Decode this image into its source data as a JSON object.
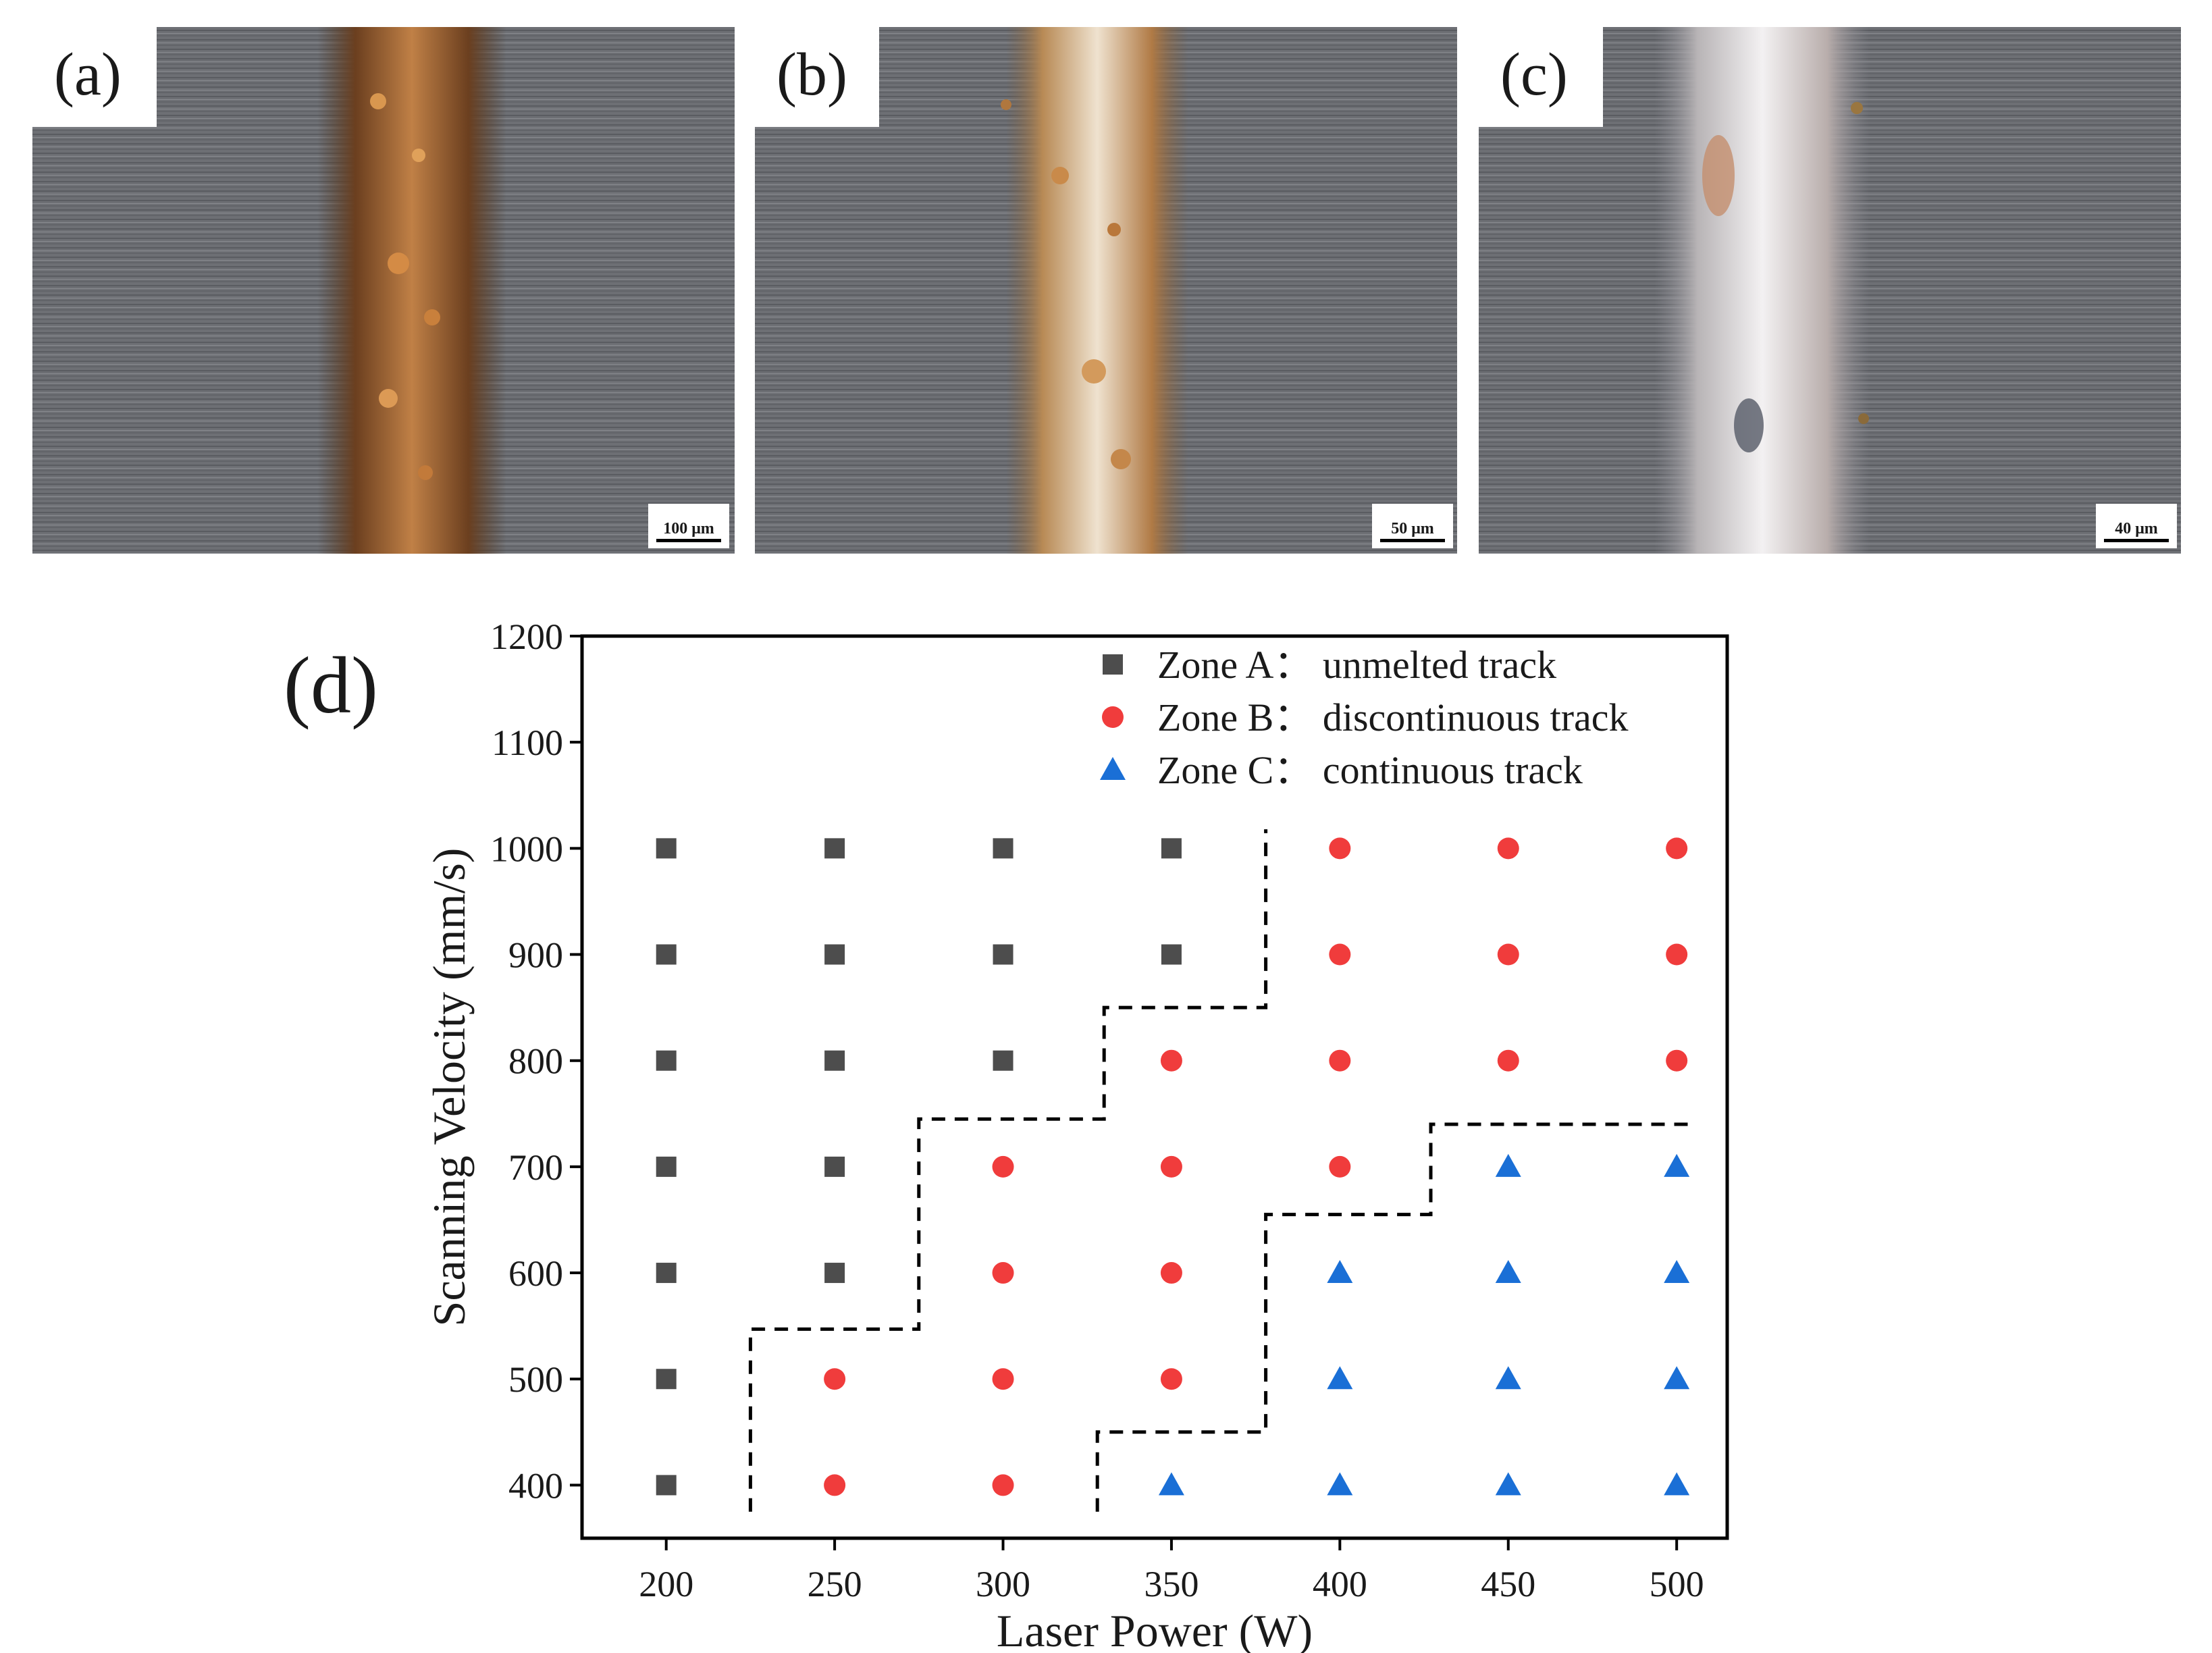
{
  "panels": [
    {
      "label": "(a)",
      "scale_bar": "100 μm"
    },
    {
      "label": "(b)",
      "scale_bar": "50 μm"
    },
    {
      "label": "(c)",
      "scale_bar": "40 μm"
    }
  ],
  "chart_panel_label": "(d)",
  "colors": {
    "zone_a": "#4d4d4d",
    "zone_b": "#f03c3c",
    "zone_c": "#1a6fd6",
    "boundary": "#000000",
    "substrate": "#6f7176",
    "track_copper": "#b06a2e"
  },
  "chart_data": {
    "type": "scatter",
    "xlabel": "Laser Power (W)",
    "ylabel": "Scanning Velocity (mm/s)",
    "xlim": [
      175,
      515
    ],
    "ylim": [
      350,
      1200
    ],
    "xticks": [
      200,
      250,
      300,
      350,
      400,
      450,
      500
    ],
    "yticks": [
      400,
      500,
      600,
      700,
      800,
      900,
      1000,
      1100,
      1200
    ],
    "grid": false,
    "legend_position": "top-right",
    "series": [
      {
        "name": "Zone A： unmelted track",
        "marker": "square",
        "points": [
          [
            200,
            1000
          ],
          [
            250,
            1000
          ],
          [
            300,
            1000
          ],
          [
            350,
            1000
          ],
          [
            200,
            900
          ],
          [
            250,
            900
          ],
          [
            300,
            900
          ],
          [
            350,
            900
          ],
          [
            200,
            800
          ],
          [
            250,
            800
          ],
          [
            300,
            800
          ],
          [
            200,
            700
          ],
          [
            250,
            700
          ],
          [
            200,
            600
          ],
          [
            250,
            600
          ],
          [
            200,
            500
          ],
          [
            200,
            400
          ]
        ]
      },
      {
        "name": "Zone B： discontinuous track",
        "marker": "circle",
        "points": [
          [
            400,
            1000
          ],
          [
            450,
            1000
          ],
          [
            500,
            1000
          ],
          [
            400,
            900
          ],
          [
            450,
            900
          ],
          [
            500,
            900
          ],
          [
            350,
            800
          ],
          [
            400,
            800
          ],
          [
            450,
            800
          ],
          [
            500,
            800
          ],
          [
            300,
            700
          ],
          [
            350,
            700
          ],
          [
            400,
            700
          ],
          [
            300,
            600
          ],
          [
            350,
            600
          ],
          [
            250,
            500
          ],
          [
            300,
            500
          ],
          [
            350,
            500
          ],
          [
            250,
            400
          ],
          [
            300,
            400
          ]
        ]
      },
      {
        "name": "Zone C： continuous track",
        "marker": "triangle",
        "points": [
          [
            450,
            700
          ],
          [
            500,
            700
          ],
          [
            400,
            600
          ],
          [
            450,
            600
          ],
          [
            500,
            600
          ],
          [
            400,
            500
          ],
          [
            450,
            500
          ],
          [
            500,
            500
          ],
          [
            350,
            400
          ],
          [
            400,
            400
          ],
          [
            450,
            400
          ],
          [
            500,
            400
          ]
        ]
      }
    ],
    "boundaries": [
      [
        [
          225,
          375
        ],
        [
          225,
          547
        ],
        [
          275,
          547
        ],
        [
          275,
          745
        ],
        [
          330,
          745
        ],
        [
          330,
          850
        ],
        [
          378,
          850
        ],
        [
          378,
          1018
        ]
      ],
      [
        [
          328,
          375
        ],
        [
          328,
          450
        ],
        [
          378,
          450
        ],
        [
          378,
          655
        ],
        [
          427,
          655
        ],
        [
          427,
          740
        ],
        [
          505,
          740
        ]
      ]
    ]
  }
}
